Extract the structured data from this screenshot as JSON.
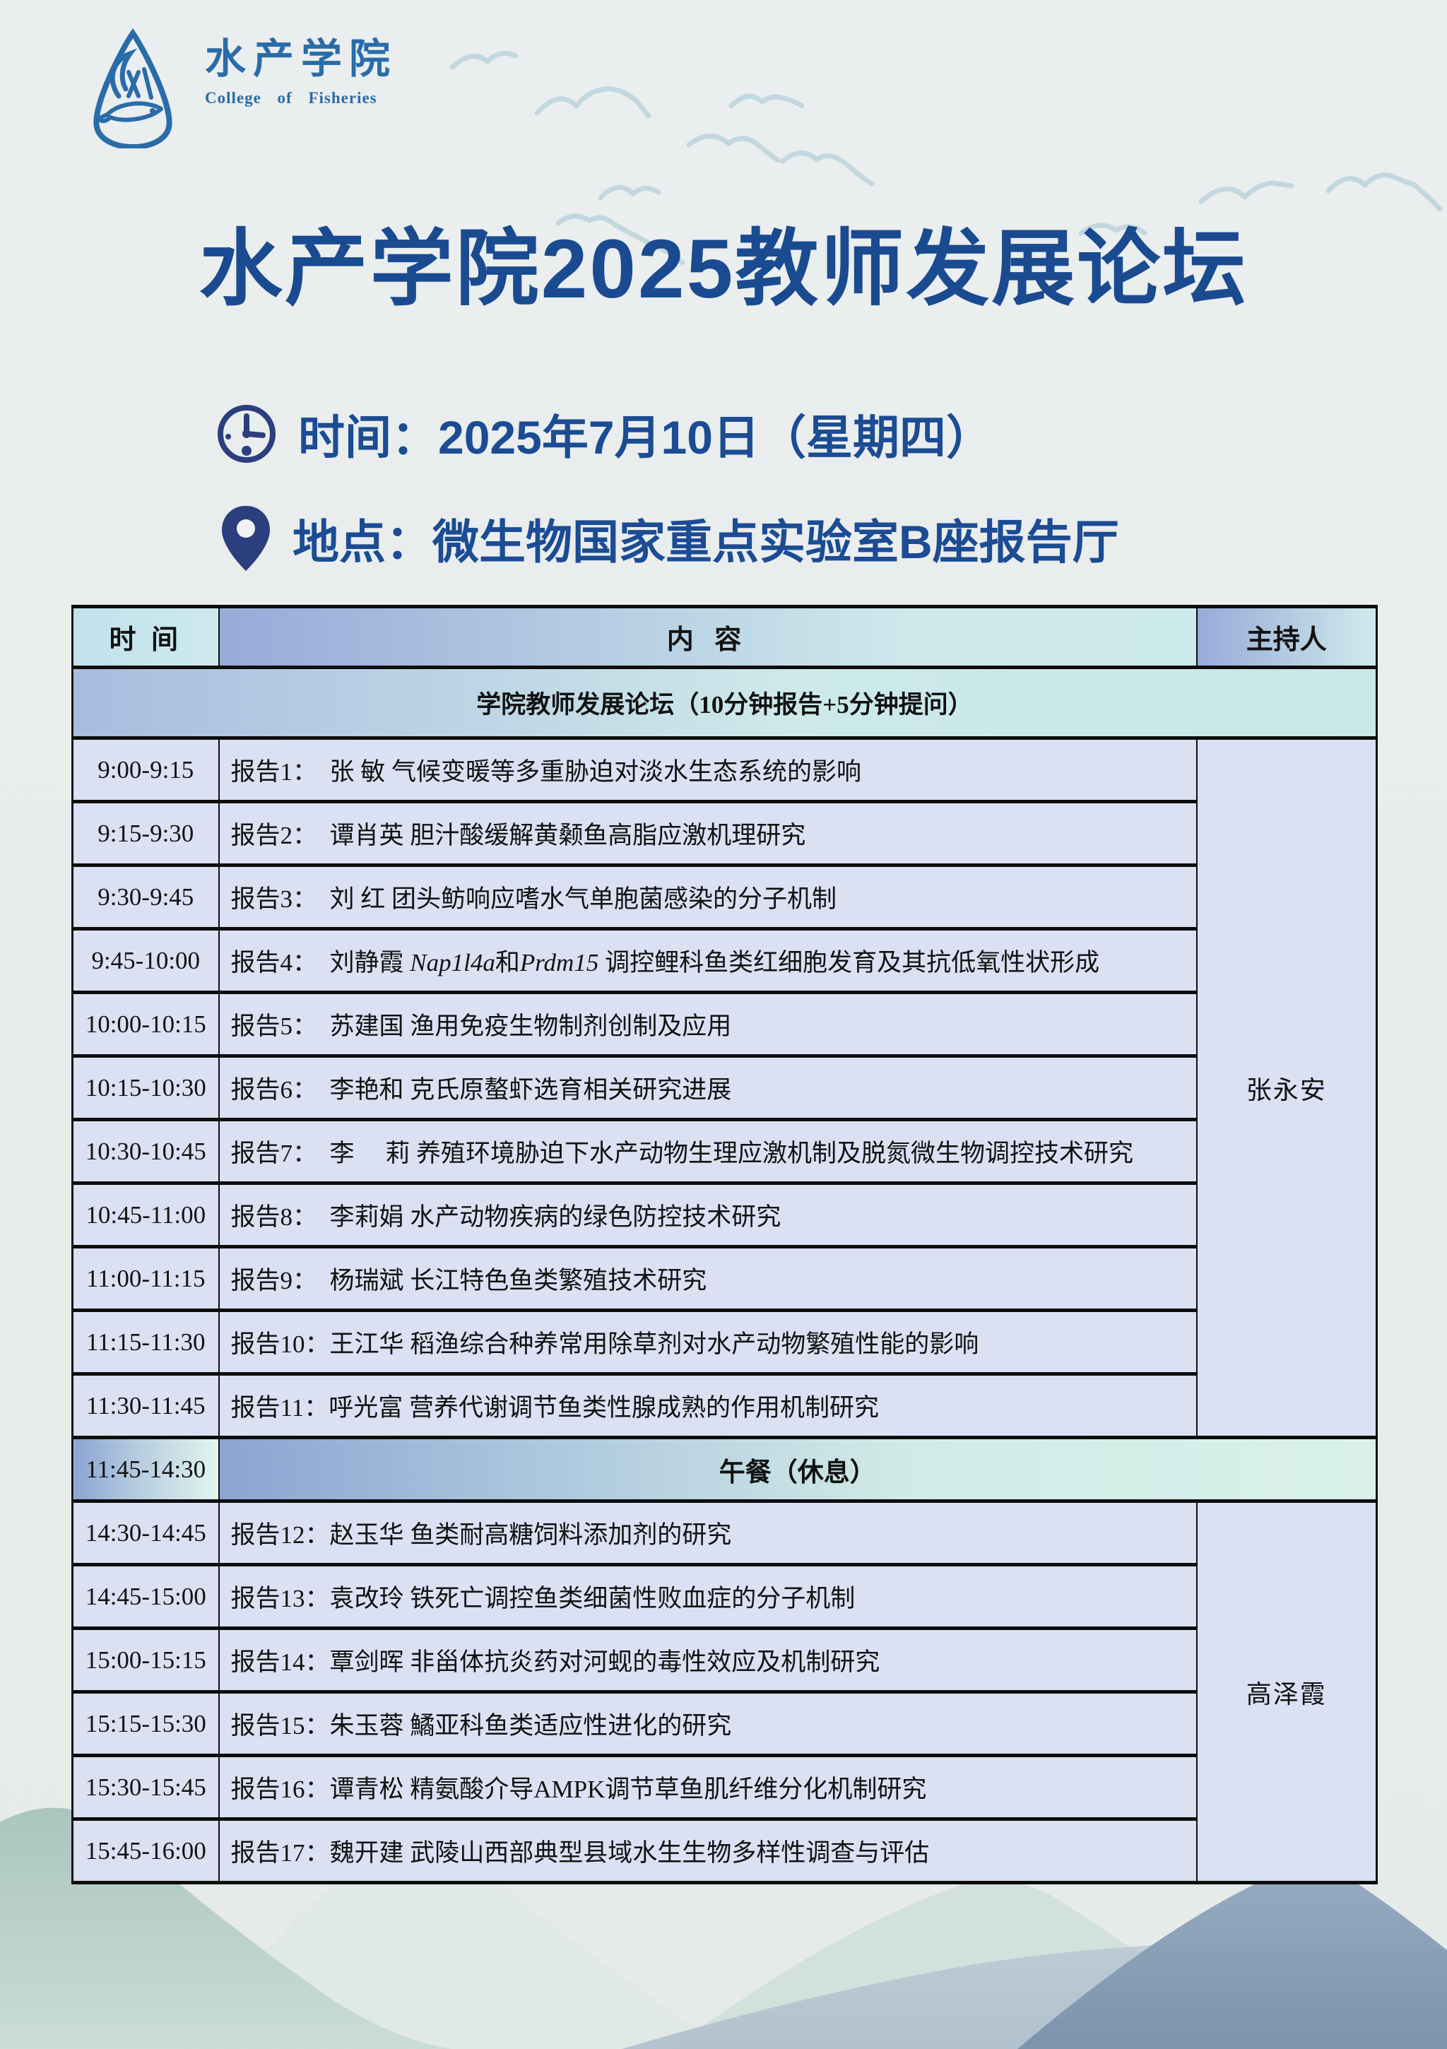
{
  "logo": {
    "name_cn": "水产学院",
    "name_en": "College  of  Fisheries"
  },
  "title": "水产学院2025教师发展论坛",
  "info": {
    "time_line": "时间：2025年7月10日（星期四）",
    "location_line": "地点：微生物国家重点实验室B座报告厅"
  },
  "table": {
    "columns": [
      "时 间",
      "内 容",
      "主持人"
    ],
    "section_header": "学院教师发展论坛（10分钟报告+5分钟提问）",
    "sessions": [
      {
        "host": "张永安",
        "rows": [
          {
            "time": "9:00-9:15",
            "content": "报告1：　张 敏 气候变暖等多重胁迫对淡水生态系统的影响"
          },
          {
            "time": "9:15-9:30",
            "content": "报告2：　谭肖英 胆汁酸缓解黄颡鱼高脂应激机理研究"
          },
          {
            "time": "9:30-9:45",
            "content": "报告3：　刘 红 团头鲂响应嗜水气单胞菌感染的分子机制"
          },
          {
            "time": "9:45-10:00",
            "content": "报告4：　刘静霞 *Nap1l4a*和*Prdm15* 调控鲤科鱼类红细胞发育及其抗低氧性状形成"
          },
          {
            "time": "10:00-10:15",
            "content": "报告5：　苏建国 渔用免疫生物制剂创制及应用"
          },
          {
            "time": "10:15-10:30",
            "content": "报告6：　李艳和 克氏原螯虾选育相关研究进展"
          },
          {
            "time": "10:30-10:45",
            "content": "报告7：　李　 莉 养殖环境胁迫下水产动物生理应激机制及脱氮微生物调控技术研究"
          },
          {
            "time": "10:45-11:00",
            "content": "报告8：　李莉娟 水产动物疾病的绿色防控技术研究"
          },
          {
            "time": "11:00-11:15",
            "content": "报告9：　杨瑞斌 长江特色鱼类繁殖技术研究"
          },
          {
            "time": "11:15-11:30",
            "content": "报告10：王江华 稻渔综合种养常用除草剂对水产动物繁殖性能的影响"
          },
          {
            "time": "11:30-11:45",
            "content": "报告11：呼光富 营养代谢调节鱼类性腺成熟的作用机制研究"
          }
        ]
      },
      {
        "host": "高泽霞",
        "rows": [
          {
            "time": "14:30-14:45",
            "content": "报告12：赵玉华 鱼类耐高糖饲料添加剂的研究"
          },
          {
            "time": "14:45-15:00",
            "content": "报告13：袁改玲 铁死亡调控鱼类细菌性败血症的分子机制"
          },
          {
            "time": "15:00-15:15",
            "content": "报告14：覃剑晖 非甾体抗炎药对河蚬的毒性效应及机制研究"
          },
          {
            "time": "15:15-15:30",
            "content": "报告15：朱玉蓉 鱊亚科鱼类适应性进化的研究"
          },
          {
            "time": "15:30-15:45",
            "content": "报告16：谭青松 精氨酸介导AMPK调节草鱼肌纤维分化机制研究"
          },
          {
            "time": "15:45-16:00",
            "content": "报告17：魏开建 武陵山西部典型县域水生生物多样性调查与评估"
          }
        ]
      }
    ],
    "break": {
      "time": "11:45-14:30",
      "label": "午餐（休息）"
    }
  },
  "colors": {
    "title_blue": "#1a4b91",
    "logo_blue": "#2a6ca9",
    "icon_navy": "#2b3e7d",
    "table_border": "#0d0d0d",
    "row_bg": "#dbe1f3",
    "header_periwinkle": "#96abd8",
    "header_cyan": "#cfeaec",
    "lunch_mint": "#ddf3ec",
    "page_bg": "#e9edec"
  }
}
